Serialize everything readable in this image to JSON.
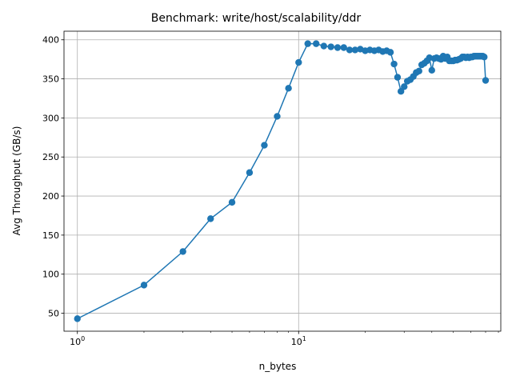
{
  "chart_data": {
    "type": "line",
    "title": "Benchmark: write/host/scalability/ddr",
    "xlabel": "n_bytes",
    "ylabel": "Avg Throughput (GB/s)",
    "xscale": "log",
    "xlim": [
      0.87,
      82
    ],
    "ylim": [
      27,
      411
    ],
    "grid": true,
    "x_ticks": [
      {
        "base": "10",
        "exp": "0",
        "value": 1
      },
      {
        "base": "10",
        "exp": "1",
        "value": 10
      }
    ],
    "y_ticks": [
      "50",
      "100",
      "150",
      "200",
      "250",
      "300",
      "350",
      "400"
    ],
    "series": [
      {
        "color": "#1f77b4",
        "marker": "circle",
        "points": [
          [
            1,
            43
          ],
          [
            2,
            86
          ],
          [
            3,
            129
          ],
          [
            4,
            171
          ],
          [
            5,
            192
          ],
          [
            6,
            230
          ],
          [
            7,
            265
          ],
          [
            8,
            302
          ],
          [
            9,
            338
          ],
          [
            10,
            371
          ],
          [
            11,
            395
          ],
          [
            12,
            395
          ],
          [
            13,
            392
          ],
          [
            14,
            391
          ],
          [
            15,
            390
          ],
          [
            16,
            390
          ],
          [
            17,
            387
          ],
          [
            18,
            387
          ],
          [
            19,
            388
          ],
          [
            20,
            386
          ],
          [
            21,
            387
          ],
          [
            22,
            386
          ],
          [
            23,
            387
          ],
          [
            24,
            385
          ],
          [
            25,
            386
          ],
          [
            26,
            384
          ],
          [
            27,
            369
          ],
          [
            28,
            352
          ],
          [
            29,
            334
          ],
          [
            30,
            340
          ],
          [
            31,
            347
          ],
          [
            32,
            349
          ],
          [
            33,
            353
          ],
          [
            34,
            358
          ],
          [
            35,
            360
          ],
          [
            36,
            368
          ],
          [
            37,
            370
          ],
          [
            38,
            373
          ],
          [
            39,
            377
          ],
          [
            40,
            361
          ],
          [
            41,
            376
          ],
          [
            42,
            377
          ],
          [
            43,
            376
          ],
          [
            44,
            375
          ],
          [
            45,
            379
          ],
          [
            46,
            376
          ],
          [
            47,
            378
          ],
          [
            48,
            373
          ],
          [
            49,
            373
          ],
          [
            50,
            373
          ],
          [
            51,
            374
          ],
          [
            52,
            374
          ],
          [
            53,
            375
          ],
          [
            54,
            376
          ],
          [
            55,
            378
          ],
          [
            56,
            378
          ],
          [
            57,
            377
          ],
          [
            58,
            378
          ],
          [
            59,
            377
          ],
          [
            60,
            378
          ],
          [
            61,
            378
          ],
          [
            62,
            379
          ],
          [
            63,
            379
          ],
          [
            64,
            379
          ],
          [
            65,
            379
          ],
          [
            66,
            379
          ],
          [
            67,
            379
          ],
          [
            68,
            379
          ],
          [
            69,
            378
          ],
          [
            70,
            348
          ]
        ]
      }
    ]
  }
}
